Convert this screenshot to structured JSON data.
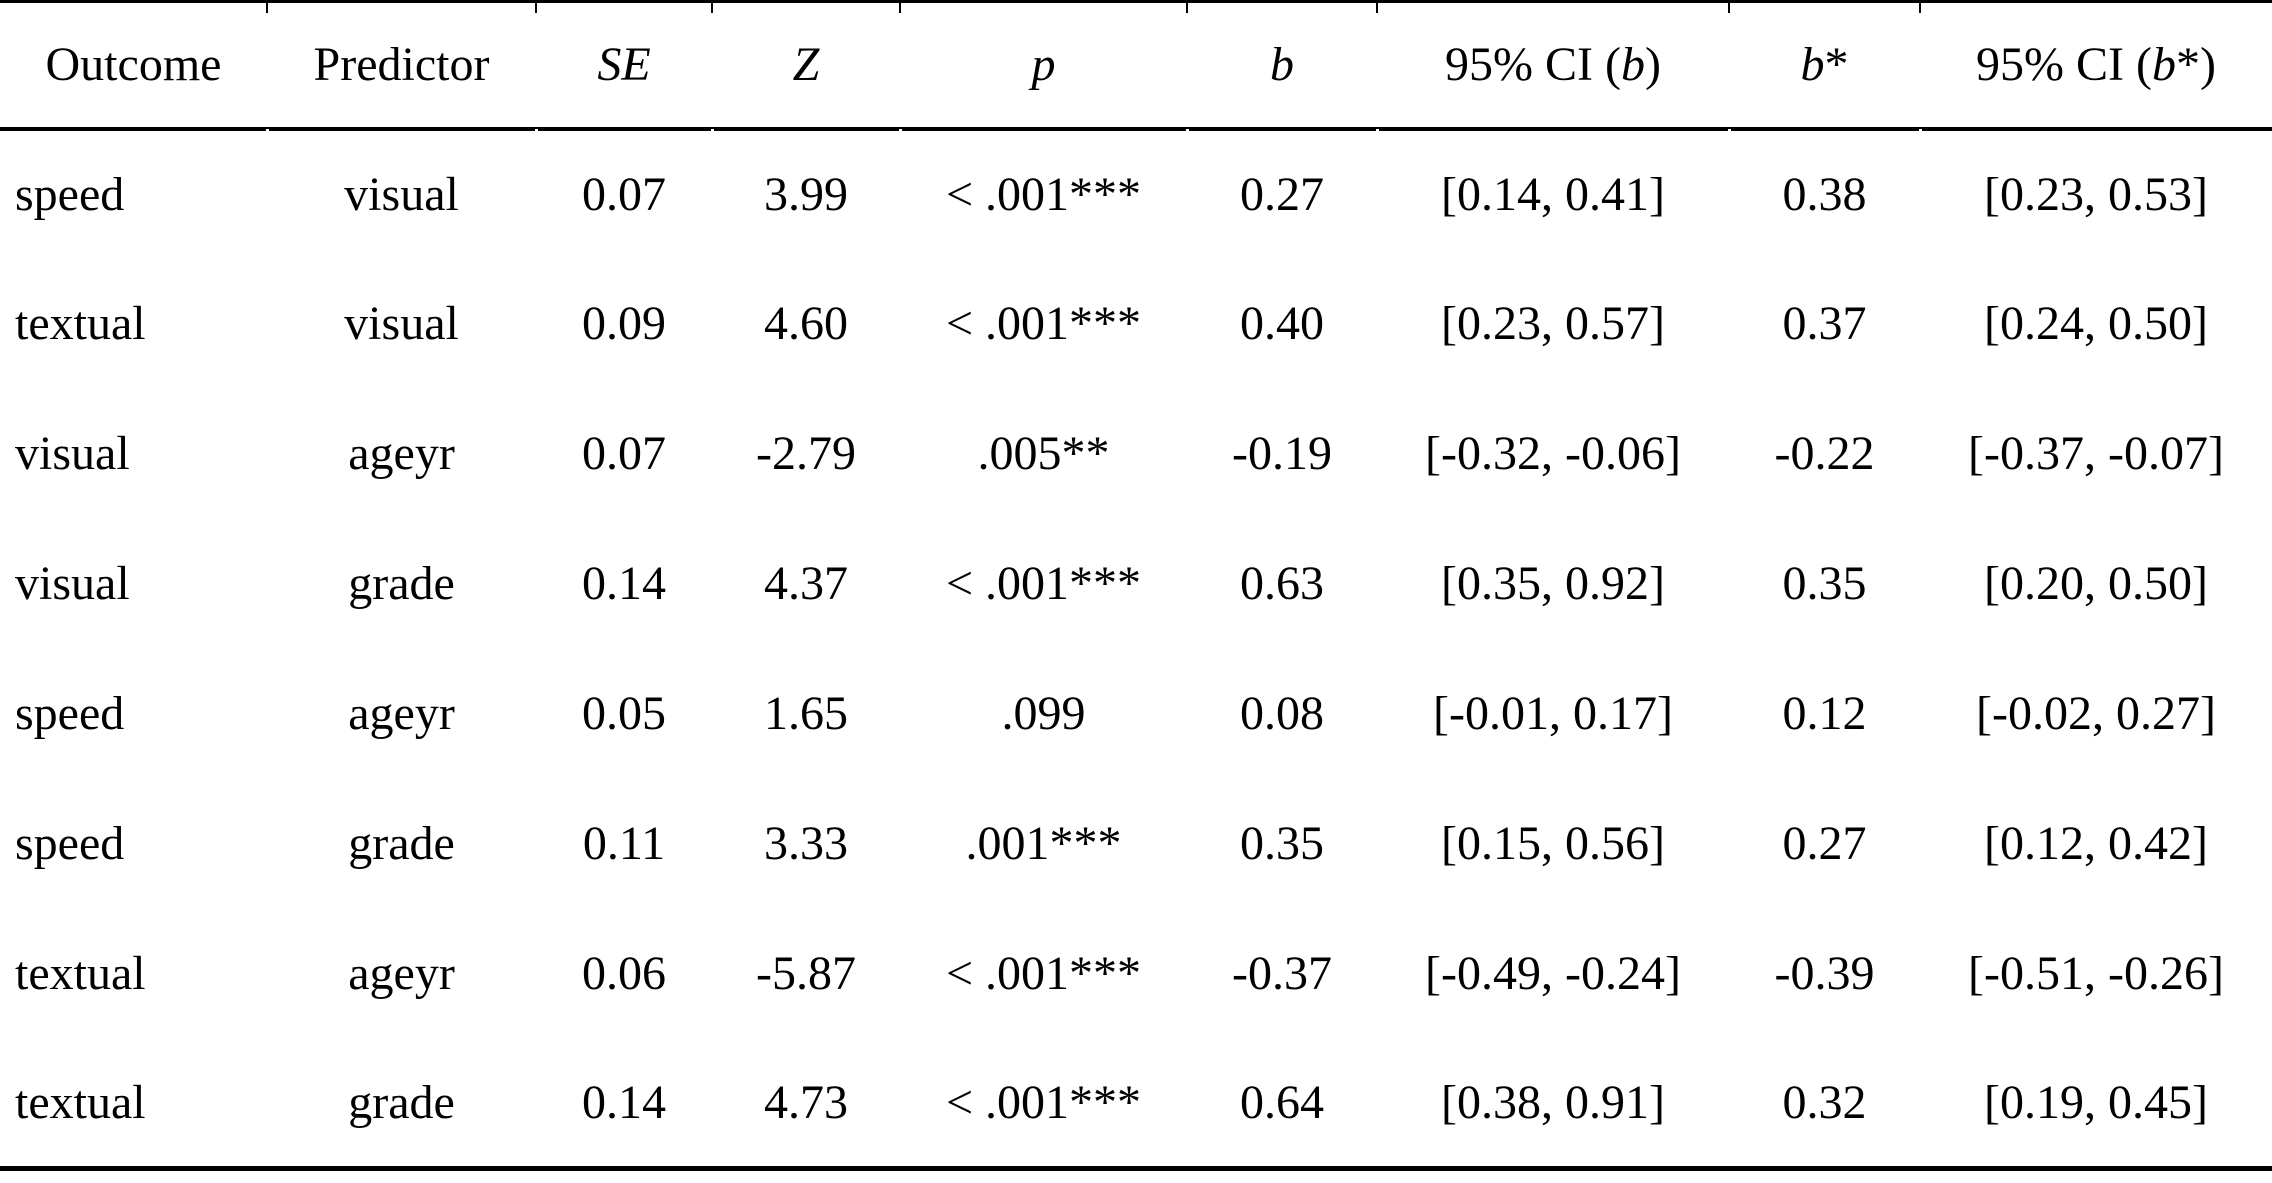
{
  "table": {
    "columns": {
      "outcome": "Outcome",
      "predictor": "Predictor",
      "se": "SE",
      "z": "Z",
      "p": "p",
      "b": "b",
      "ci_prefix": "95% CI (",
      "close_paren": ")",
      "star": "*"
    },
    "rows": [
      {
        "outcome": "speed",
        "predictor": "visual",
        "se": "0.07",
        "z": "3.99",
        "p": "< .001***",
        "b": "0.27",
        "ci_b": "[0.14, 0.41]",
        "b_star": "0.38",
        "ci_b_star": "[0.23, 0.53]"
      },
      {
        "outcome": "textual",
        "predictor": "visual",
        "se": "0.09",
        "z": "4.60",
        "p": "< .001***",
        "b": "0.40",
        "ci_b": "[0.23, 0.57]",
        "b_star": "0.37",
        "ci_b_star": "[0.24, 0.50]"
      },
      {
        "outcome": "visual",
        "predictor": "ageyr",
        "se": "0.07",
        "z": "-2.79",
        "p": ".005**",
        "b": "-0.19",
        "ci_b": "[-0.32, -0.06]",
        "b_star": "-0.22",
        "ci_b_star": "[-0.37, -0.07]"
      },
      {
        "outcome": "visual",
        "predictor": "grade",
        "se": "0.14",
        "z": "4.37",
        "p": "< .001***",
        "b": "0.63",
        "ci_b": "[0.35, 0.92]",
        "b_star": "0.35",
        "ci_b_star": "[0.20, 0.50]"
      },
      {
        "outcome": "speed",
        "predictor": "ageyr",
        "se": "0.05",
        "z": "1.65",
        "p": ".099",
        "b": "0.08",
        "ci_b": "[-0.01, 0.17]",
        "b_star": "0.12",
        "ci_b_star": "[-0.02, 0.27]"
      },
      {
        "outcome": "speed",
        "predictor": "grade",
        "se": "0.11",
        "z": "3.33",
        "p": ".001***",
        "b": "0.35",
        "ci_b": "[0.15, 0.56]",
        "b_star": "0.27",
        "ci_b_star": "[0.12, 0.42]"
      },
      {
        "outcome": "textual",
        "predictor": "ageyr",
        "se": "0.06",
        "z": "-5.87",
        "p": "< .001***",
        "b": "-0.37",
        "ci_b": "[-0.49, -0.24]",
        "b_star": "-0.39",
        "ci_b_star": "[-0.51, -0.26]"
      },
      {
        "outcome": "textual",
        "predictor": "grade",
        "se": "0.14",
        "z": "4.73",
        "p": "< .001***",
        "b": "0.64",
        "ci_b": "[0.38, 0.91]",
        "b_star": "0.32",
        "ci_b_star": "[0.19, 0.45]"
      }
    ]
  }
}
